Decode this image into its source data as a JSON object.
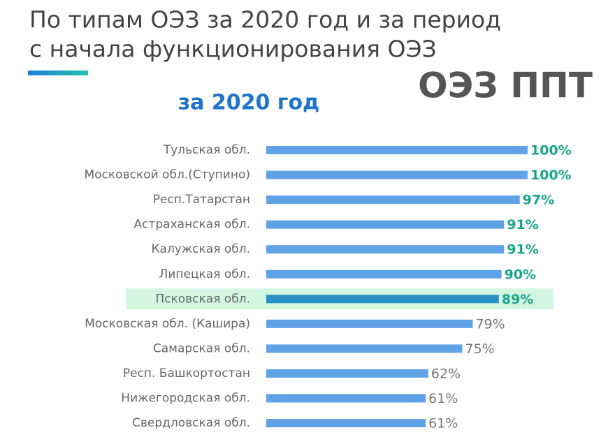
{
  "chart_data": {
    "type": "hbar",
    "title": "По типам ОЭЗ за 2020 год и за период",
    "title_line2": "с начала функционирования ОЭЗ",
    "badge": "ОЭЗ ППТ",
    "subtitle": "за 2020 год",
    "categories": [
      "Тульская обл.",
      "Московской обл.(Ступино)",
      "Респ.Татарстан",
      "Астраханская обл.",
      "Калужская обл.",
      "Липецкая обл.",
      "Псковская обл.",
      "Московская обл. (Кашира)",
      "Самарская обл.",
      "Респ. Башкортостан",
      "Нижегородская обл.",
      "Свердловская обл."
    ],
    "values": [
      100,
      100,
      97,
      91,
      91,
      90,
      89,
      79,
      75,
      62,
      61,
      61
    ],
    "value_labels": [
      "100%",
      "100%",
      "97%",
      "91%",
      "91%",
      "90%",
      "89%",
      "79%",
      "75%",
      "62%",
      "61%",
      "61%"
    ],
    "label_colors": [
      "#1aa68a",
      "#1aa68a",
      "#1aa68a",
      "#1aa68a",
      "#1aa68a",
      "#1aa68a",
      "#1aa68a",
      "#777777",
      "#777777",
      "#777777",
      "#777777",
      "#777777"
    ],
    "color": "#5fa3e6",
    "highlight_index": 6,
    "highlight_color": "#d2f6e0",
    "xlim": [
      0,
      100
    ]
  }
}
